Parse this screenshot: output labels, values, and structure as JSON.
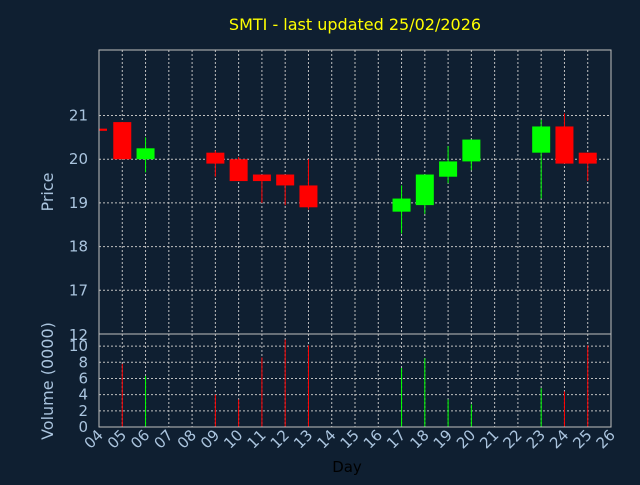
{
  "colors": {
    "background": "#0f1f31",
    "frame": "#c0c0c0",
    "grid": "#c0c0c0",
    "title": "#ffff00",
    "axis_text": "#aac4de",
    "xlabel": "#000000",
    "up": "#00ff00",
    "down": "#ff0000"
  },
  "chart_data": {
    "type": "candlestick",
    "title": "SMTI - last updated 25/02/2026",
    "xlabel": "Day",
    "price_panel": {
      "ylabel": "Price",
      "ylim": [
        16,
        22.5
      ],
      "yticks": [
        17,
        18,
        19,
        20,
        21
      ],
      "grid": true
    },
    "volume_panel": {
      "ylabel": "Volume (0000)",
      "ylim": [
        0,
        11.5
      ],
      "yticks": [
        0,
        2,
        4,
        6,
        8,
        10
      ],
      "grid": true,
      "divider_label": "12"
    },
    "x_ticks": [
      "04",
      "05",
      "06",
      "07",
      "08",
      "09",
      "10",
      "11",
      "12",
      "13",
      "14",
      "15",
      "16",
      "17",
      "18",
      "19",
      "20",
      "21",
      "22",
      "23",
      "24",
      "25",
      "26"
    ],
    "candles": [
      {
        "day": "04",
        "open": 20.7,
        "high": 20.7,
        "low": 20.65,
        "close": 20.65,
        "volume": 0
      },
      {
        "day": "05",
        "open": 20.85,
        "high": 20.85,
        "low": 20.0,
        "close": 20.0,
        "volume": 7.8
      },
      {
        "day": "06",
        "open": 20.0,
        "high": 20.5,
        "low": 19.7,
        "close": 20.25,
        "volume": 6.3
      },
      {
        "day": "09",
        "open": 20.15,
        "high": 20.2,
        "low": 19.6,
        "close": 19.9,
        "volume": 4.0
      },
      {
        "day": "10",
        "open": 20.0,
        "high": 20.05,
        "low": 19.5,
        "close": 19.5,
        "volume": 3.4
      },
      {
        "day": "11",
        "open": 19.65,
        "high": 19.65,
        "low": 19.0,
        "close": 19.5,
        "volume": 8.6
      },
      {
        "day": "12",
        "open": 19.65,
        "high": 19.65,
        "low": 18.95,
        "close": 19.4,
        "volume": 10.8
      },
      {
        "day": "13",
        "open": 19.4,
        "high": 20.0,
        "low": 18.85,
        "close": 18.9,
        "volume": 10.1
      },
      {
        "day": "17",
        "open": 18.8,
        "high": 19.4,
        "low": 18.3,
        "close": 19.1,
        "volume": 7.3
      },
      {
        "day": "18",
        "open": 18.95,
        "high": 19.65,
        "low": 18.75,
        "close": 19.65,
        "volume": 8.5
      },
      {
        "day": "19",
        "open": 19.6,
        "high": 20.3,
        "low": 19.45,
        "close": 19.95,
        "volume": 3.4
      },
      {
        "day": "20",
        "open": 19.95,
        "high": 20.45,
        "low": 19.75,
        "close": 20.45,
        "volume": 2.8
      },
      {
        "day": "23",
        "open": 20.15,
        "high": 20.9,
        "low": 19.1,
        "close": 20.75,
        "volume": 4.8
      },
      {
        "day": "24",
        "open": 20.75,
        "high": 21.05,
        "low": 19.9,
        "close": 19.9,
        "volume": 4.4
      },
      {
        "day": "25",
        "open": 20.15,
        "high": 20.15,
        "low": 19.5,
        "close": 19.9,
        "volume": 10.1
      }
    ]
  }
}
